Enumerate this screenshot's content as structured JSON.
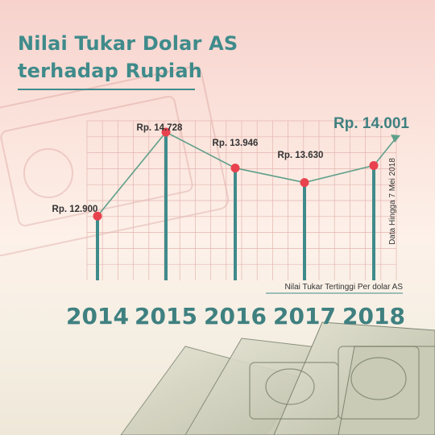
{
  "title": {
    "line1": "Nilai Tukar Dolar AS",
    "line2": "terhadap Rupiah"
  },
  "colors": {
    "title": "#3f8b8b",
    "bar": "#3f8b8b",
    "line": "#5f9f8a",
    "marker": "#e8424e",
    "grid": "#e3b5b0"
  },
  "chart_data": {
    "type": "line",
    "categories": [
      "2014",
      "2015",
      "2016",
      "2017",
      "2018"
    ],
    "values": [
      12900,
      14728,
      13946,
      13630,
      14001
    ],
    "data_labels": [
      "Rp. 12.900",
      "Rp. 14.728",
      "Rp. 13.946",
      "Rp. 13.630",
      "Rp. 14.001"
    ],
    "caption": "Nilai Tukar Tertinggi Per dolar AS",
    "side_note": "Data Hingga 7 Mei 2018",
    "ylim": [
      11500,
      15500
    ],
    "grid": true
  }
}
